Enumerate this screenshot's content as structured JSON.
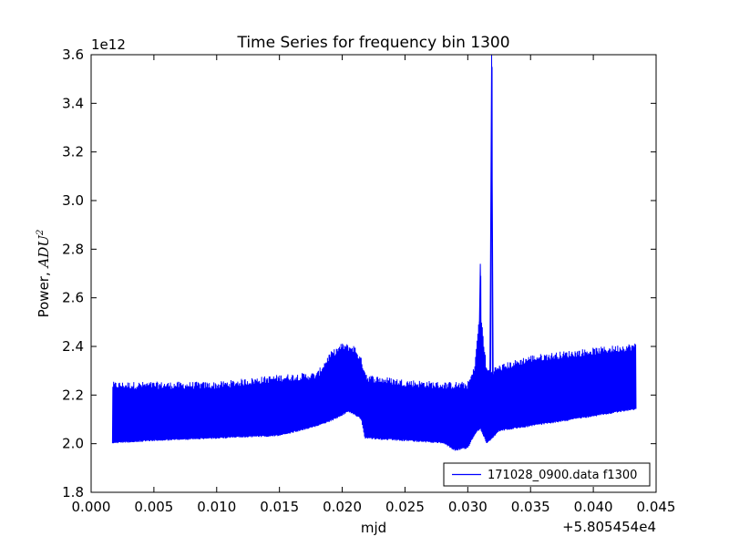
{
  "chart_data": {
    "type": "line",
    "title": "Time Series for frequency bin 1300",
    "xlabel": "mjd",
    "ylabel_text": "Power, ",
    "ylabel_unit": "ADU",
    "ylabel_unit_exp": "2",
    "xlim": [
      0.0,
      0.045
    ],
    "ylim": [
      1.8,
      3.6
    ],
    "x_offset_label": "+5.805454e4",
    "y_scale_label": "1e12",
    "x_ticks": [
      "0.000",
      "0.005",
      "0.010",
      "0.015",
      "0.020",
      "0.025",
      "0.030",
      "0.035",
      "0.040",
      "0.045"
    ],
    "y_ticks": [
      "1.8",
      "2.0",
      "2.2",
      "2.4",
      "2.6",
      "2.8",
      "3.0",
      "3.2",
      "3.4",
      "3.6"
    ],
    "grid": false,
    "legend_position": "lower right",
    "series": [
      {
        "name": "171028_0900.data f1300",
        "color": "#0000ff",
        "x_range": [
          0.0017,
          0.0434
        ],
        "lower_envelope": {
          "x": [
            0.0017,
            0.005,
            0.01,
            0.015,
            0.018,
            0.0195,
            0.0205,
            0.0215,
            0.0218,
            0.025,
            0.028,
            0.029,
            0.03,
            0.0305,
            0.031,
            0.0315,
            0.032,
            0.0325,
            0.035,
            0.04,
            0.0434
          ],
          "y": [
            2.0,
            2.01,
            2.02,
            2.03,
            2.07,
            2.1,
            2.13,
            2.1,
            2.02,
            2.01,
            2.0,
            1.97,
            1.98,
            2.03,
            2.06,
            2.0,
            2.02,
            2.05,
            2.07,
            2.11,
            2.14
          ]
        },
        "upper_envelope": {
          "x": [
            0.0017,
            0.005,
            0.01,
            0.015,
            0.018,
            0.019,
            0.02,
            0.021,
            0.0215,
            0.022,
            0.025,
            0.028,
            0.03,
            0.0305,
            0.031,
            0.0315,
            0.032,
            0.0325,
            0.035,
            0.04,
            0.0434
          ],
          "y": [
            2.24,
            2.24,
            2.24,
            2.27,
            2.28,
            2.36,
            2.4,
            2.39,
            2.34,
            2.27,
            2.25,
            2.24,
            2.24,
            2.3,
            2.55,
            2.3,
            2.3,
            2.31,
            2.35,
            2.38,
            2.4
          ]
        },
        "peaks": [
          {
            "x": 0.031,
            "y": 2.74
          },
          {
            "x": 0.0319,
            "y": 3.6
          }
        ]
      }
    ]
  }
}
